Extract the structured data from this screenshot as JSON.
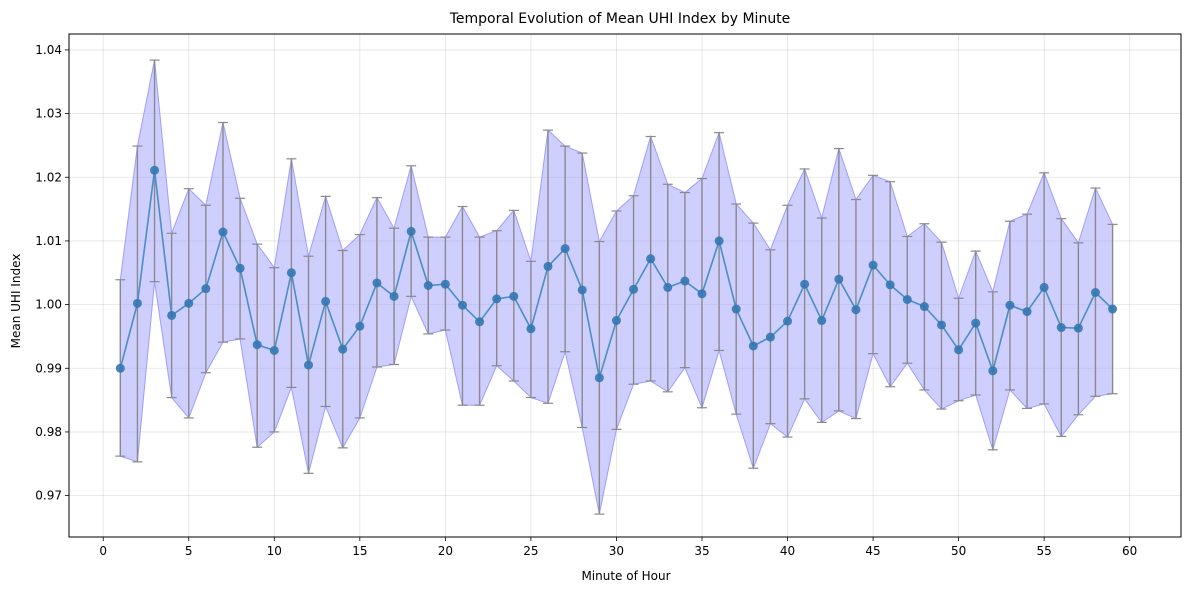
{
  "chart_data": {
    "type": "line",
    "title": "Temporal Evolution of Mean UHI Index by Minute",
    "xlabel": "Minute of Hour",
    "ylabel": "Mean UHI Index",
    "xlim": [
      -2,
      63
    ],
    "ylim": [
      0.9635,
      1.0425
    ],
    "xticks": [
      0,
      5,
      10,
      15,
      20,
      25,
      30,
      35,
      40,
      45,
      50,
      55,
      60
    ],
    "yticks": [
      0.97,
      0.98,
      0.99,
      1.0,
      1.01,
      1.02,
      1.03,
      1.04
    ],
    "ytick_labels": [
      "0.97",
      "0.98",
      "0.99",
      "1.00",
      "1.01",
      "1.02",
      "1.03",
      "1.04"
    ],
    "grid": true,
    "colors": {
      "line": "#4a8fc4",
      "marker": "#3477b0",
      "band": "#9d9dff",
      "errorbar": "#8a8a8a"
    },
    "series": [
      {
        "x": [
          1,
          2,
          3,
          4,
          5,
          6,
          7,
          8,
          9,
          10,
          11,
          12,
          13,
          14,
          15,
          16,
          17,
          18,
          19,
          20,
          21,
          22,
          23,
          24,
          25,
          26,
          27,
          28,
          29,
          30,
          31,
          32,
          33,
          34,
          35,
          36,
          37,
          38,
          39,
          40,
          41,
          42,
          43,
          44,
          45,
          46,
          47,
          48,
          49,
          50,
          51,
          52,
          53,
          54,
          55,
          56,
          57,
          58,
          59
        ],
        "mean": [
          0.99,
          1.0002,
          1.0211,
          0.9983,
          1.0002,
          1.0025,
          1.0114,
          1.0057,
          0.9937,
          0.9928,
          1.005,
          0.9905,
          1.0005,
          0.993,
          0.9966,
          1.0034,
          1.0013,
          1.0115,
          1.003,
          1.0032,
          0.9999,
          0.9973,
          1.0009,
          1.0013,
          0.9962,
          1.006,
          1.0088,
          1.0023,
          0.9885,
          0.9975,
          1.0024,
          1.0072,
          1.0027,
          1.0037,
          1.0017,
          1.01,
          0.9993,
          0.9935,
          0.9949,
          0.9974,
          1.0032,
          0.9975,
          1.004,
          0.9992,
          1.0062,
          1.0031,
          1.0008,
          0.9997,
          0.9968,
          0.9929,
          0.9971,
          0.9896,
          0.9999,
          0.9989,
          1.0027,
          0.9964,
          0.9963,
          1.0019,
          0.9993
        ],
        "upper": [
          1.0039,
          1.0249,
          1.0384,
          1.0112,
          1.0182,
          1.0156,
          1.0286,
          1.0167,
          1.0095,
          1.0058,
          1.0229,
          1.0076,
          1.017,
          1.0085,
          1.011,
          1.0168,
          1.012,
          1.0218,
          1.0106,
          1.0106,
          1.0154,
          1.0106,
          1.0116,
          1.0148,
          1.0068,
          1.0274,
          1.0249,
          1.0238,
          1.0099,
          1.0147,
          1.0171,
          1.0264,
          1.0189,
          1.0176,
          1.0198,
          1.027,
          1.0158,
          1.0128,
          1.0086,
          1.0156,
          1.0213,
          1.0136,
          1.0245,
          1.0165,
          1.0203,
          1.0193,
          1.0107,
          1.0127,
          1.0098,
          1.001,
          1.0084,
          1.002,
          1.0131,
          1.0142,
          1.0207,
          1.0135,
          1.0097,
          1.0183,
          1.0126
        ],
        "lower": [
          0.9762,
          0.9753,
          1.0036,
          0.9854,
          0.9822,
          0.9893,
          0.9941,
          0.9946,
          0.9776,
          0.98,
          0.987,
          0.9735,
          0.984,
          0.9775,
          0.9822,
          0.9902,
          0.9906,
          1.0013,
          0.9954,
          0.996,
          0.9842,
          0.9842,
          0.9904,
          0.988,
          0.9854,
          0.9845,
          0.9926,
          0.9807,
          0.9671,
          0.9804,
          0.9875,
          0.988,
          0.9863,
          0.9901,
          0.9838,
          0.9928,
          0.9828,
          0.9743,
          0.9813,
          0.9792,
          0.9852,
          0.9815,
          0.9833,
          0.9821,
          0.9923,
          0.9871,
          0.9908,
          0.9866,
          0.9836,
          0.9849,
          0.9858,
          0.9772,
          0.9866,
          0.9837,
          0.9844,
          0.9793,
          0.9827,
          0.9856,
          0.986
        ]
      }
    ]
  }
}
